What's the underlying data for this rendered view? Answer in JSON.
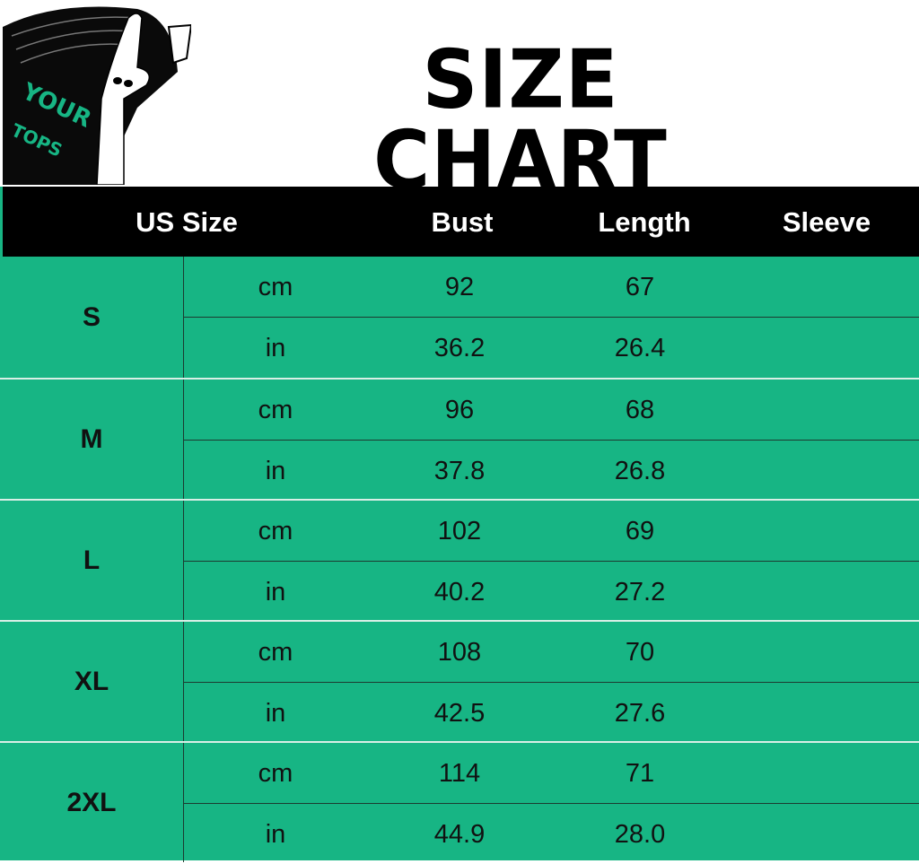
{
  "logo": {
    "text": "YOUR TOPS",
    "accent": "#17b584"
  },
  "title": "SIZE  CHART",
  "columns": [
    "US Size",
    "Bust",
    "Length",
    "Sleeve"
  ],
  "rows": [
    {
      "size": "S",
      "cm": {
        "unit": "cm",
        "bust": "92",
        "length": "67",
        "sleeve": ""
      },
      "in": {
        "unit": "in",
        "bust": "36.2",
        "length": "26.4",
        "sleeve": ""
      }
    },
    {
      "size": "M",
      "cm": {
        "unit": "cm",
        "bust": "96",
        "length": "68",
        "sleeve": ""
      },
      "in": {
        "unit": "in",
        "bust": "37.8",
        "length": "26.8",
        "sleeve": ""
      }
    },
    {
      "size": "L",
      "cm": {
        "unit": "cm",
        "bust": "102",
        "length": "69",
        "sleeve": ""
      },
      "in": {
        "unit": "in",
        "bust": "40.2",
        "length": "27.2",
        "sleeve": ""
      }
    },
    {
      "size": "XL",
      "cm": {
        "unit": "cm",
        "bust": "108",
        "length": "70",
        "sleeve": ""
      },
      "in": {
        "unit": "in",
        "bust": "42.5",
        "length": "27.6",
        "sleeve": ""
      }
    },
    {
      "size": "2XL",
      "cm": {
        "unit": "cm",
        "bust": "114",
        "length": "71",
        "sleeve": ""
      },
      "in": {
        "unit": "in",
        "bust": "44.9",
        "length": "28.0",
        "sleeve": ""
      }
    }
  ],
  "colors": {
    "table_bg": "#17b584",
    "header_bg": "#000000"
  }
}
